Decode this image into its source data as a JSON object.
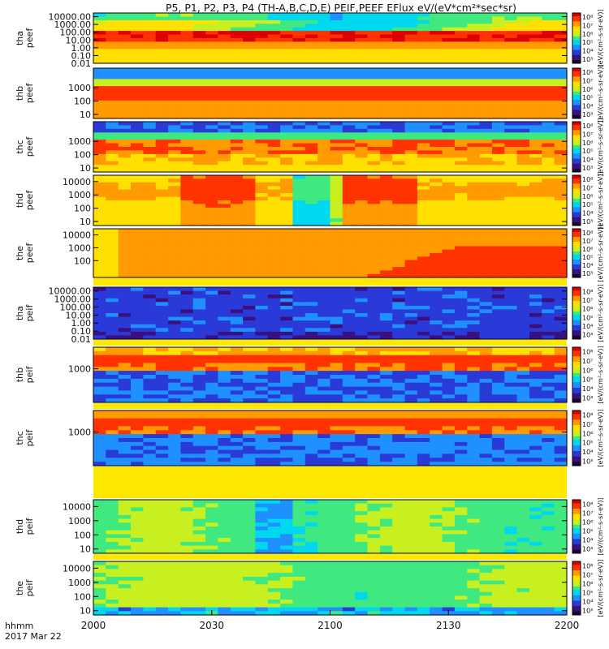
{
  "title": "P5, P1, P2, P3, P4 (TH-A,B,C,D,E) PEIF,PEEF EFlux eV/(eV*cm²*sec*sr)",
  "x_axis": {
    "ticks": [
      "2000",
      "2030",
      "2100",
      "2130",
      "2200"
    ],
    "label_line1": "hhmm",
    "label_line2": "2017 Mar 22"
  },
  "colorbar": {
    "ticks": [
      "10³",
      "10⁴",
      "10⁵",
      "10⁶",
      "10⁷",
      "10⁸"
    ],
    "label": "[eV/(cm²-s-sr-eV)]"
  },
  "chart_data": {
    "type": "heatmap",
    "x_range": [
      "2000",
      "2200"
    ],
    "panels": [
      {
        "probe": "tha",
        "quantity": "peef",
        "ylim": [
          0.01,
          30000
        ],
        "yticks": [
          "10000.00",
          "1000.00",
          "100.00",
          "10.00",
          "1.00",
          "0.10",
          "0.01"
        ],
        "log": true
      },
      {
        "probe": "thb",
        "quantity": "peef",
        "ylim": [
          5,
          30000
        ],
        "yticks": [
          "1000",
          "100",
          "10"
        ],
        "log": true
      },
      {
        "probe": "thc",
        "quantity": "peef",
        "ylim": [
          5,
          30000
        ],
        "yticks": [
          "1000",
          "100",
          "10"
        ],
        "log": true
      },
      {
        "probe": "thd",
        "quantity": "peef",
        "ylim": [
          5,
          30000
        ],
        "yticks": [
          "10000",
          "1000",
          "100",
          "10"
        ],
        "log": true
      },
      {
        "probe": "the",
        "quantity": "peef",
        "ylim": [
          5,
          30000
        ],
        "yticks": [
          "10000",
          "1000",
          "100"
        ],
        "log": true
      },
      {
        "probe": "tha",
        "quantity": "peif",
        "ylim": [
          0.01,
          30000
        ],
        "yticks": [
          "10000.00",
          "1000.00",
          "100.00",
          "10.00",
          "1.00",
          "0.10",
          "0.01"
        ],
        "log": true
      },
      {
        "probe": "thb",
        "quantity": "peif",
        "ylim": [
          5,
          30000
        ],
        "yticks": [
          "1000"
        ],
        "log": true
      },
      {
        "probe": "thc",
        "quantity": "peif",
        "ylim": [
          5,
          30000
        ],
        "yticks": [
          "1000"
        ],
        "log": true
      },
      {
        "probe": "thd",
        "quantity": "peif",
        "ylim": [
          5,
          30000
        ],
        "yticks": [
          "10000",
          "1000",
          "100",
          "10"
        ],
        "log": true
      },
      {
        "probe": "the",
        "quantity": "peif",
        "ylim": [
          5,
          30000
        ],
        "yticks": [
          "10000",
          "1000",
          "100",
          "10"
        ],
        "log": true
      }
    ]
  },
  "colors": {
    "scale": [
      "#1a0033",
      "#3a1080",
      "#2a3ad8",
      "#1e90ff",
      "#00d8f0",
      "#40e880",
      "#c8f020",
      "#ffe000",
      "#ff9a00",
      "#ff3300",
      "#dd0000"
    ]
  }
}
